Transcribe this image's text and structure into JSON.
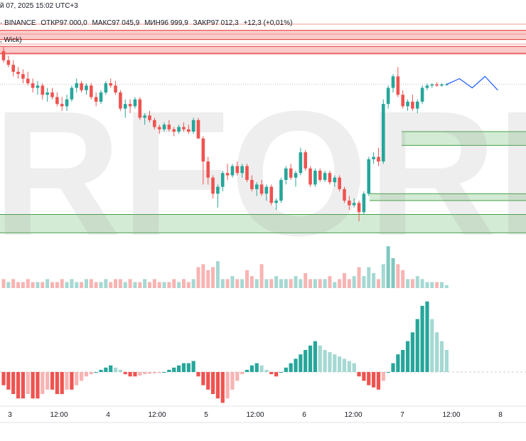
{
  "header": {
    "date_line": "й 07, 2025 15:02 UTC+3",
    "symbol_line": "· BINANCE",
    "open": "ОТКР97 000,0",
    "high": "МАКС97 045,9",
    "low": "МИН96 999,9",
    "close": "ЗАКР97 012,3",
    "change": "+12,3 (+0,01%)",
    "indicator_line": ", Wick)"
  },
  "watermark": "RFOREX",
  "colors": {
    "up": "#26a69a",
    "down": "#ef5350",
    "up_light": "#a5d8d3",
    "down_light": "#f7b4b3",
    "supply_zone": "#f8b9b8",
    "supply_line": "#e53935",
    "demand_zone": "#c8e6c9",
    "demand_line": "#43a047",
    "projection": "#2962ff"
  },
  "chart_data": {
    "type": "candlestick",
    "x_tick_labels": [
      "3",
      "12:00",
      "4",
      "12:00",
      "5",
      "12:00",
      "6",
      "12:00",
      "7",
      "12:00",
      "8"
    ],
    "candles": [
      [
        99400,
        99600,
        98900,
        99000
      ],
      [
        99000,
        99200,
        98700,
        98800
      ],
      [
        98800,
        99000,
        98300,
        98500
      ],
      [
        98500,
        98700,
        98200,
        98400
      ],
      [
        98400,
        98600,
        98000,
        98200
      ],
      [
        98200,
        98500,
        97900,
        98000
      ],
      [
        98000,
        98200,
        97600,
        97800
      ],
      [
        97800,
        98100,
        97500,
        97900
      ],
      [
        97900,
        98000,
        97300,
        97500
      ],
      [
        97500,
        97800,
        97200,
        97600
      ],
      [
        97600,
        97800,
        97300,
        97400
      ],
      [
        97400,
        97600,
        97000,
        97100
      ],
      [
        97100,
        97400,
        96800,
        97000
      ],
      [
        97000,
        97500,
        96800,
        97300
      ],
      [
        97300,
        97900,
        97200,
        97800
      ],
      [
        97800,
        98200,
        97600,
        98000
      ],
      [
        98000,
        98100,
        97600,
        97700
      ],
      [
        97700,
        98000,
        97500,
        97900
      ],
      [
        97900,
        98000,
        97300,
        97400
      ],
      [
        97400,
        97600,
        97000,
        97200
      ],
      [
        97200,
        97700,
        97100,
        97600
      ],
      [
        97600,
        98100,
        97500,
        98000
      ],
      [
        98000,
        98200,
        97800,
        97900
      ],
      [
        97900,
        98100,
        97500,
        97600
      ],
      [
        97600,
        97700,
        96800,
        96900
      ],
      [
        96900,
        97300,
        96500,
        97100
      ],
      [
        97100,
        97300,
        96700,
        97000
      ],
      [
        97000,
        97400,
        96900,
        97300
      ],
      [
        97300,
        97400,
        96400,
        96500
      ],
      [
        96500,
        96700,
        96200,
        96600
      ],
      [
        96600,
        96800,
        96300,
        96400
      ],
      [
        96400,
        96500,
        96000,
        96100
      ],
      [
        96100,
        96200,
        95800,
        96000
      ],
      [
        96000,
        96300,
        95900,
        96200
      ],
      [
        96200,
        96400,
        95900,
        96000
      ],
      [
        96000,
        96100,
        95700,
        95900
      ],
      [
        95900,
        96200,
        95800,
        96100
      ],
      [
        96100,
        96300,
        95900,
        96000
      ],
      [
        96000,
        96200,
        95800,
        95900
      ],
      [
        95900,
        96500,
        95800,
        96400
      ],
      [
        96400,
        96500,
        95600,
        95600
      ],
      [
        95600,
        95700,
        93600,
        94600
      ],
      [
        94600,
        94800,
        93600,
        93900
      ],
      [
        93900,
        94000,
        93000,
        93200
      ],
      [
        93200,
        93600,
        92600,
        93500
      ],
      [
        93500,
        94200,
        93300,
        94100
      ],
      [
        94100,
        94500,
        93800,
        94000
      ],
      [
        94000,
        94500,
        93900,
        94400
      ],
      [
        94400,
        94600,
        94000,
        94100
      ],
      [
        94100,
        94500,
        93900,
        94400
      ],
      [
        94400,
        94500,
        93700,
        93800
      ],
      [
        93800,
        94000,
        93300,
        93400
      ],
      [
        93400,
        93700,
        93100,
        93600
      ],
      [
        93600,
        93800,
        93100,
        93200
      ],
      [
        93200,
        93600,
        92900,
        93500
      ],
      [
        93500,
        93600,
        92700,
        92800
      ],
      [
        92800,
        93000,
        92500,
        92900
      ],
      [
        92900,
        93900,
        92800,
        93800
      ],
      [
        93800,
        94400,
        93600,
        94300
      ],
      [
        94300,
        94500,
        93800,
        93900
      ],
      [
        93900,
        94200,
        93500,
        94100
      ],
      [
        94100,
        95200,
        94000,
        95000
      ],
      [
        95000,
        95100,
        94200,
        94300
      ],
      [
        94300,
        94400,
        93500,
        93600
      ],
      [
        93600,
        94300,
        93500,
        94200
      ],
      [
        94200,
        94300,
        93700,
        93800
      ],
      [
        93800,
        94200,
        93700,
        94100
      ],
      [
        94100,
        94200,
        93600,
        93700
      ],
      [
        93700,
        94000,
        93500,
        93900
      ],
      [
        93900,
        94000,
        93300,
        93400
      ],
      [
        93400,
        93500,
        92800,
        92900
      ],
      [
        92900,
        93100,
        92500,
        92700
      ],
      [
        92700,
        93000,
        92600,
        92800
      ],
      [
        92800,
        92900,
        92000,
        92400
      ],
      [
        92400,
        93300,
        92300,
        93200
      ],
      [
        93200,
        94800,
        93100,
        94700
      ],
      [
        94700,
        95000,
        94500,
        94800
      ],
      [
        94800,
        95200,
        94400,
        94600
      ],
      [
        94600,
        97300,
        94500,
        97100
      ],
      [
        97100,
        97900,
        96900,
        97800
      ],
      [
        97800,
        98400,
        97600,
        98300
      ],
      [
        98300,
        98700,
        97400,
        97500
      ],
      [
        97500,
        97700,
        96900,
        97000
      ],
      [
        97000,
        97300,
        96800,
        97200
      ],
      [
        97200,
        97500,
        96800,
        96900
      ],
      [
        96900,
        97300,
        96700,
        97200
      ],
      [
        97200,
        97900,
        97100,
        97800
      ],
      [
        97800,
        98000,
        97700,
        97900
      ],
      [
        97900,
        98000,
        97800,
        97950
      ],
      [
        97950,
        98050,
        97850,
        97900
      ],
      [
        97900,
        98000,
        97850,
        97950
      ],
      [
        97950,
        98000,
        97900,
        97950
      ]
    ],
    "volumes": [
      3,
      2,
      3,
      2,
      2,
      3,
      2,
      2,
      2,
      3,
      2,
      2,
      3,
      2,
      3,
      2,
      2,
      3,
      3,
      2,
      2,
      3,
      2,
      3,
      3,
      2,
      3,
      2,
      2,
      3,
      2,
      3,
      2,
      2,
      2,
      3,
      2,
      3,
      2,
      3,
      7,
      8,
      6,
      7,
      9,
      3,
      3,
      4,
      3,
      3,
      6,
      4,
      3,
      8,
      3,
      3,
      4,
      3,
      3,
      3,
      4,
      3,
      5,
      3,
      3,
      3,
      3,
      4,
      2,
      3,
      5,
      3,
      4,
      7,
      4,
      7,
      5,
      3,
      8,
      14,
      10,
      8,
      6,
      3,
      3,
      4,
      3,
      2,
      2,
      2,
      2,
      1
    ],
    "volume_up": [
      0,
      1,
      0,
      0,
      0,
      0,
      0,
      1,
      0,
      1,
      0,
      0,
      0,
      1,
      1,
      1,
      0,
      1,
      0,
      0,
      1,
      1,
      0,
      0,
      0,
      1,
      0,
      1,
      0,
      1,
      0,
      0,
      0,
      1,
      0,
      0,
      1,
      0,
      0,
      1,
      0,
      0,
      0,
      0,
      1,
      1,
      0,
      1,
      0,
      1,
      0,
      0,
      1,
      0,
      1,
      0,
      1,
      1,
      1,
      0,
      1,
      1,
      0,
      0,
      1,
      0,
      1,
      0,
      1,
      0,
      0,
      0,
      1,
      0,
      1,
      1,
      1,
      0,
      1,
      1,
      1,
      0,
      0,
      1,
      0,
      1,
      1,
      1,
      1,
      0,
      1,
      1
    ],
    "oscillator": [
      -3,
      -4,
      -5,
      -6,
      -6,
      -5,
      -6,
      -6,
      -5,
      -4,
      -4,
      -5,
      -5,
      -4,
      -4,
      -3,
      -2,
      -1,
      -0.5,
      0,
      0.5,
      1,
      1.5,
      1,
      0.5,
      -0.5,
      -1,
      -1,
      -0.8,
      -0.5,
      -0.4,
      -0.3,
      -0.2,
      0,
      0.5,
      1,
      1.5,
      2,
      2,
      2.5,
      -1,
      -3,
      -4,
      -5,
      -6,
      -7,
      -6,
      -4,
      -2,
      -0.5,
      0.5,
      1.5,
      2,
      1.5,
      0.5,
      -0.5,
      -1,
      0,
      1,
      2,
      3,
      4,
      5,
      6,
      7,
      6,
      5,
      4.5,
      4,
      3.5,
      3,
      2.5,
      2,
      -1,
      -2,
      -3,
      -3.5,
      -4,
      -2,
      0,
      2,
      4,
      5,
      7,
      9,
      12,
      15,
      16,
      12,
      9,
      7,
      5
    ],
    "resistance_zones": [
      [
        99900,
        100300
      ],
      [
        99300,
        99600
      ]
    ],
    "support_zones": [
      [
        95300,
        95900
      ],
      [
        92900,
        93200
      ],
      [
        91500,
        92300
      ]
    ],
    "projection": [
      [
        97950,
        98200,
        97800,
        98300,
        97700
      ]
    ]
  }
}
